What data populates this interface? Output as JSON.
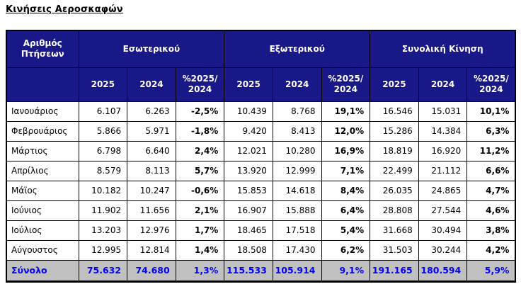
{
  "page_title": "Κινήσεις Αεροσκαφών",
  "table": {
    "corner_header": "Αριθμός\nΠτήσεων",
    "group_headers": [
      "Εσωτερικού",
      "Εξωτερικού",
      "Συνολική Κίνηση"
    ],
    "sub_headers": [
      "2025",
      "2024",
      "%2025/\n2024"
    ],
    "rows": [
      {
        "month": "Ιανουάριος",
        "cells": [
          "6.107",
          "6.263",
          "-2,5%",
          "10.439",
          "8.768",
          "19,1%",
          "16.546",
          "15.031",
          "10,1%"
        ]
      },
      {
        "month": "Φεβρουάριος",
        "cells": [
          "5.866",
          "5.971",
          "-1,8%",
          "9.420",
          "8.413",
          "12,0%",
          "15.286",
          "14.384",
          "6,3%"
        ]
      },
      {
        "month": "Μάρτιος",
        "cells": [
          "6.798",
          "6.640",
          "2,4%",
          "12.021",
          "10.280",
          "16,9%",
          "18.819",
          "16.920",
          "11,2%"
        ]
      },
      {
        "month": "Απρίλιος",
        "cells": [
          "8.579",
          "8.113",
          "5,7%",
          "13.920",
          "12.999",
          "7,1%",
          "22.499",
          "21.112",
          "6,6%"
        ]
      },
      {
        "month": "Μάϊος",
        "cells": [
          "10.182",
          "10.247",
          "-0,6%",
          "15.853",
          "14.618",
          "8,4%",
          "26.035",
          "24.865",
          "4,7%"
        ]
      },
      {
        "month": "Ιούνιος",
        "cells": [
          "11.902",
          "11.656",
          "2,1%",
          "16.907",
          "15.888",
          "6,4%",
          "28.808",
          "27.544",
          "4,6%"
        ]
      },
      {
        "month": "Ιούλιος",
        "cells": [
          "13.203",
          "12.976",
          "1,7%",
          "18.465",
          "17.518",
          "5,4%",
          "31.668",
          "30.494",
          "3,8%"
        ]
      },
      {
        "month": "Αύγουστος",
        "cells": [
          "12.995",
          "12.814",
          "1,4%",
          "18.508",
          "17.430",
          "6,2%",
          "31.503",
          "30.244",
          "4,2%"
        ]
      }
    ],
    "total_row": {
      "label": "Σύνολο",
      "cells": [
        "75.632",
        "74.680",
        "1,3%",
        "115.533",
        "105.914",
        "9,1%",
        "191.165",
        "180.594",
        "5,9%"
      ]
    }
  },
  "colors": {
    "header_bg": "#181889",
    "header_text": "#FFFFFF",
    "total_bg": "#C0C0C0",
    "total_text": "#0000FF",
    "border": "#000000"
  }
}
